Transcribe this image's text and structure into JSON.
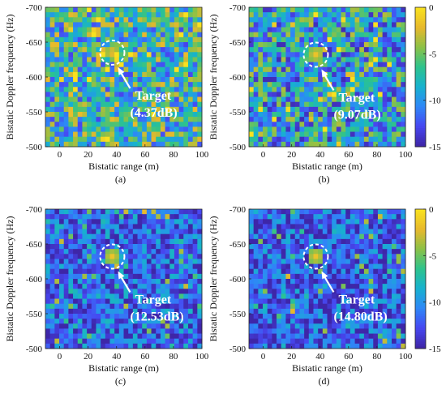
{
  "colorbar": {
    "ticks": [
      "0",
      "-5",
      "-10",
      "-15"
    ],
    "colors": [
      "#3e26a8",
      "#4748f2",
      "#2e87f7",
      "#17b1cf",
      "#2dc38d",
      "#8ac148",
      "#e6b82d",
      "#f9e11f"
    ]
  },
  "chart_data": [
    {
      "type": "heatmap",
      "panel_label": "(a)",
      "xlabel": "Bistatic range (m)",
      "ylabel": "Bistatic Doppler frequency (Hz)",
      "xlim": [
        -10,
        100
      ],
      "ylim": [
        -500,
        -700
      ],
      "xticks": [
        "0",
        "20",
        "40",
        "60",
        "80",
        "100"
      ],
      "yticks": [
        "-700",
        "-650",
        "-600",
        "-550",
        "-500"
      ],
      "clim": [
        -15,
        0
      ],
      "target": {
        "range_m": 37,
        "doppler_hz": -635,
        "label": "Target",
        "snr": "(4.37dB)"
      },
      "background_level": -7.5
    },
    {
      "type": "heatmap",
      "panel_label": "(b)",
      "xlabel": "Bistatic range (m)",
      "ylabel": "Bistatic Doppler frequency (Hz)",
      "xlim": [
        -10,
        100
      ],
      "ylim": [
        -500,
        -700
      ],
      "xticks": [
        "0",
        "20",
        "40",
        "60",
        "80",
        "100"
      ],
      "yticks": [
        "-700",
        "-650",
        "-600",
        "-550",
        "-500"
      ],
      "clim": [
        -15,
        0
      ],
      "target": {
        "range_m": 37,
        "doppler_hz": -632,
        "label": "Target",
        "snr": "(9.07dB)"
      },
      "background_level": -9
    },
    {
      "type": "heatmap",
      "panel_label": "(c)",
      "xlabel": "Bistatic range (m)",
      "ylabel": "Bistatic Doppler frequency (Hz)",
      "xlim": [
        -10,
        100
      ],
      "ylim": [
        -500,
        -700
      ],
      "xticks": [
        "0",
        "20",
        "40",
        "60",
        "80",
        "100"
      ],
      "yticks": [
        "-700",
        "-650",
        "-600",
        "-550",
        "-500"
      ],
      "clim": [
        -15,
        0
      ],
      "target": {
        "range_m": 37,
        "doppler_hz": -632,
        "label": "Target",
        "snr": "(12.53dB)"
      },
      "background_level": -12
    },
    {
      "type": "heatmap",
      "panel_label": "(d)",
      "xlabel": "Bistatic range (m)",
      "ylabel": "Bistatic Doppler frequency (Hz)",
      "xlim": [
        -10,
        100
      ],
      "ylim": [
        -500,
        -700
      ],
      "xticks": [
        "0",
        "20",
        "40",
        "60",
        "80",
        "100"
      ],
      "yticks": [
        "-700",
        "-650",
        "-600",
        "-550",
        "-500"
      ],
      "clim": [
        -15,
        0
      ],
      "target": {
        "range_m": 37,
        "doppler_hz": -632,
        "label": "Target",
        "snr": "(14.80dB)"
      },
      "background_level": -12.5
    }
  ]
}
